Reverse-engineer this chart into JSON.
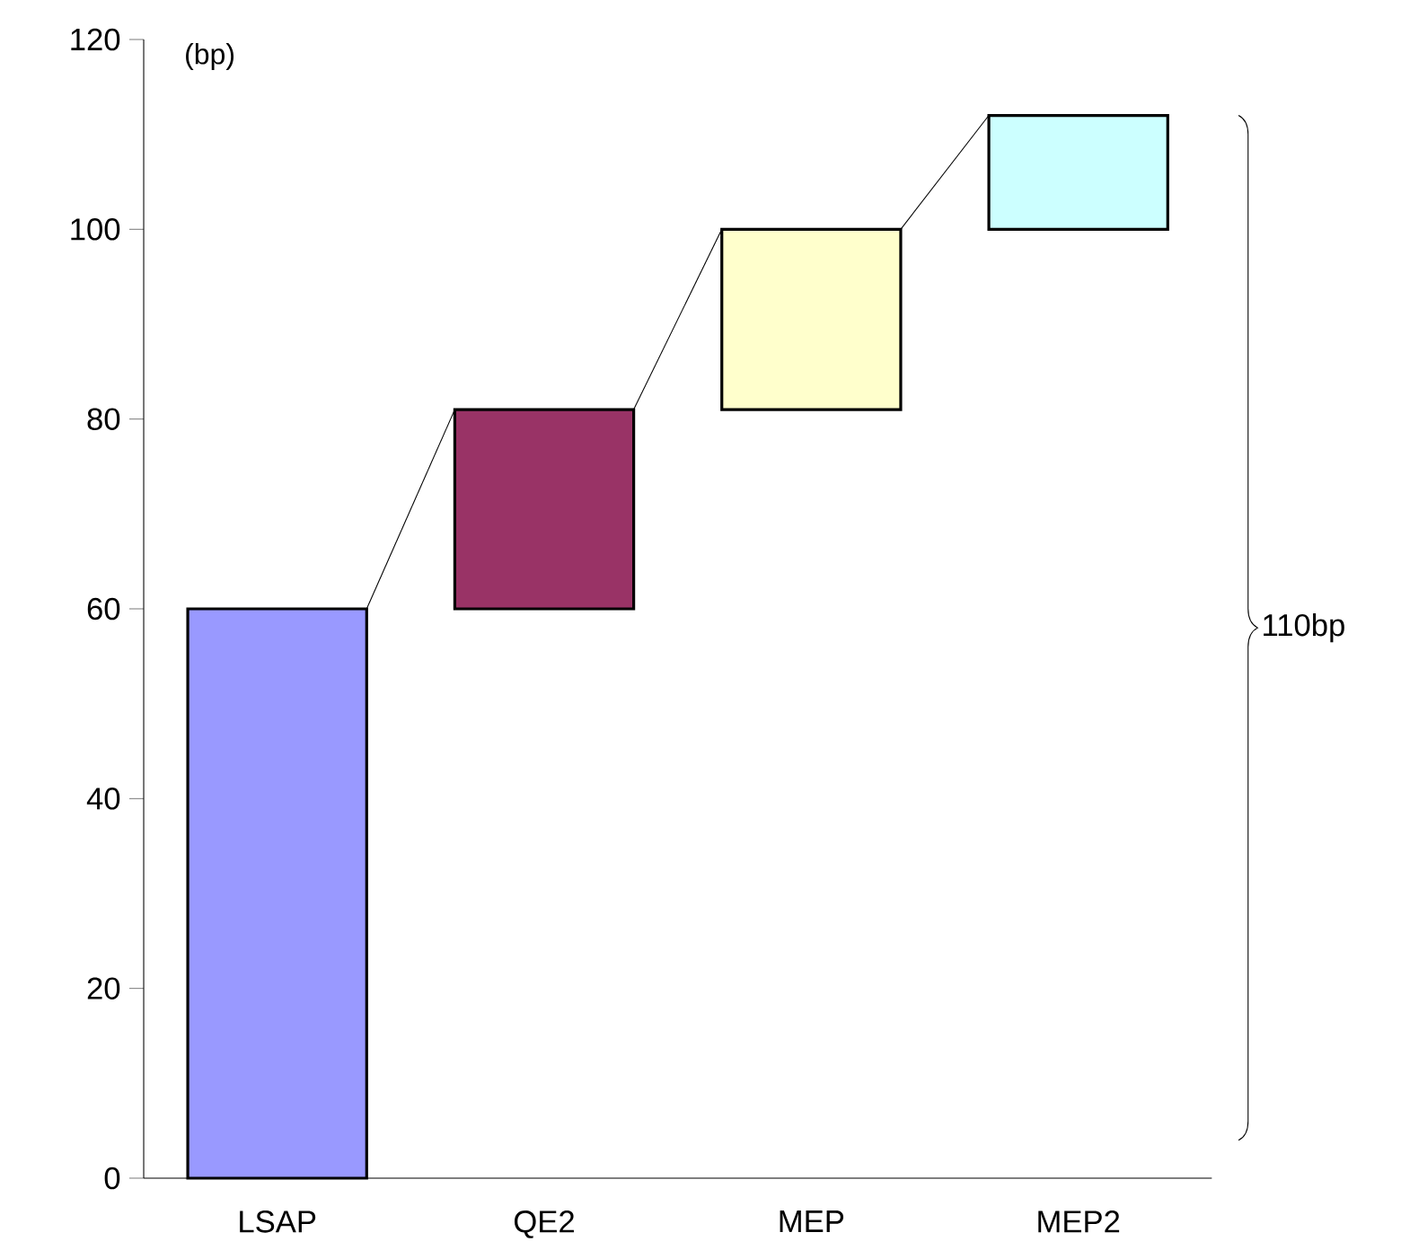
{
  "chart_data": {
    "type": "bar",
    "ylabel": "(bp)",
    "categories": [
      "LSAP",
      "QE2",
      "MEP",
      "MEP2"
    ],
    "values": [
      60,
      21,
      19,
      12
    ],
    "base": [
      0,
      60,
      81,
      100
    ],
    "colors": [
      "#9999ff",
      "#993366",
      "#ffffcc",
      "#ccffff"
    ],
    "ylim": [
      0,
      120
    ],
    "yticks": [
      0,
      20,
      40,
      60,
      80,
      100,
      120
    ],
    "grid": false,
    "annotations": [
      "110bp"
    ]
  }
}
